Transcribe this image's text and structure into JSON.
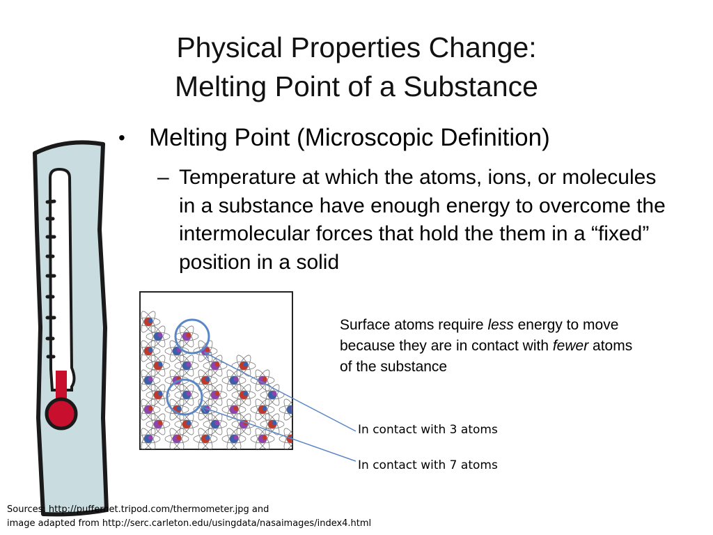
{
  "slide": {
    "title_line1": "Physical Properties Change:",
    "title_line2": "Melting Point of a Substance",
    "bullet_symbol": "•",
    "bullet": "Melting Point (Microscopic Definition)",
    "sub_bullet_symbol": "–",
    "sub_bullet": "Temperature at which the atoms, ions, or molecules in a substance have enough energy to overcome the intermolecular forces that hold the them in a “fixed” position in a solid"
  },
  "annotation": {
    "surface_part1": "Surface atoms require ",
    "surface_em1": "less",
    "surface_part2": " energy to move because they are in contact with ",
    "surface_em2": "fewer",
    "surface_part3": " atoms of the substance",
    "contact_3": "In contact with 3 atoms",
    "contact_7": "In contact with 7 atoms"
  },
  "sources": {
    "line1": "Sources: http://puffernet.tripod.com/thermometer.jpg and",
    "line2": "image adapted from http://serc.carleton.edu/usingdata/nasaimages/index4.html"
  },
  "colors": {
    "callout": "#5b86c4",
    "thermometer_body": "#c9dde0",
    "mercury": "#c8102e"
  }
}
